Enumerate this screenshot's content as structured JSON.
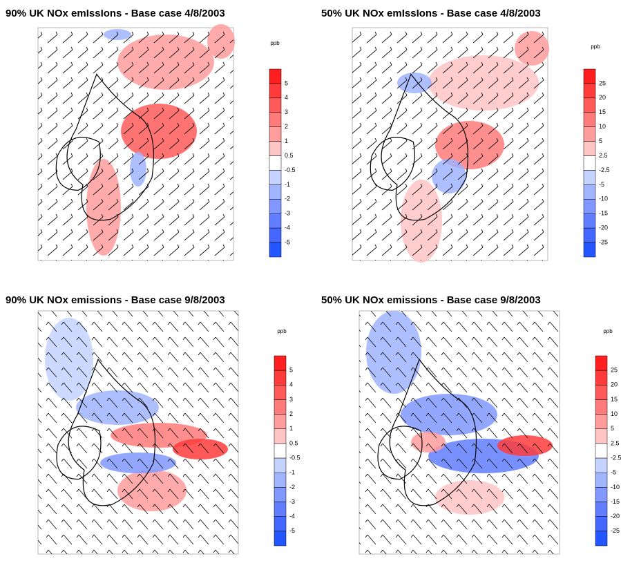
{
  "panels": [
    {
      "title": "90% UK NOx emIssIons - Base case 4/8/2003",
      "unit": "ppb",
      "labels": [
        "5",
        "4",
        "3",
        "2",
        "1",
        "0.5",
        "-0.5",
        "-1",
        "-2",
        "-3",
        "-4",
        "-5"
      ]
    },
    {
      "title": "50% UK NOx emIssIons - Base case 4/8/2003",
      "unit": "ppb",
      "labels": [
        "25",
        "20",
        "15",
        "10",
        "5",
        "2.5",
        "-2.5",
        "-5",
        "-10",
        "-15",
        "-20",
        "-25"
      ]
    },
    {
      "title": "90% UK NOx emissions - Base case 9/8/2003",
      "unit": "ppb",
      "labels": [
        "5",
        "4",
        "3",
        "2",
        "1",
        "0.5",
        "-0.5",
        "-1",
        "-2",
        "-3",
        "-4",
        "-5"
      ]
    },
    {
      "title": "50% UK NOx emissions - Base case 9/8/2003",
      "unit": "ppb",
      "labels": [
        "25",
        "20",
        "15",
        "10",
        "5",
        "2.5",
        "-2.5",
        "-5",
        "-10",
        "-15",
        "-20",
        "-25"
      ]
    }
  ]
}
